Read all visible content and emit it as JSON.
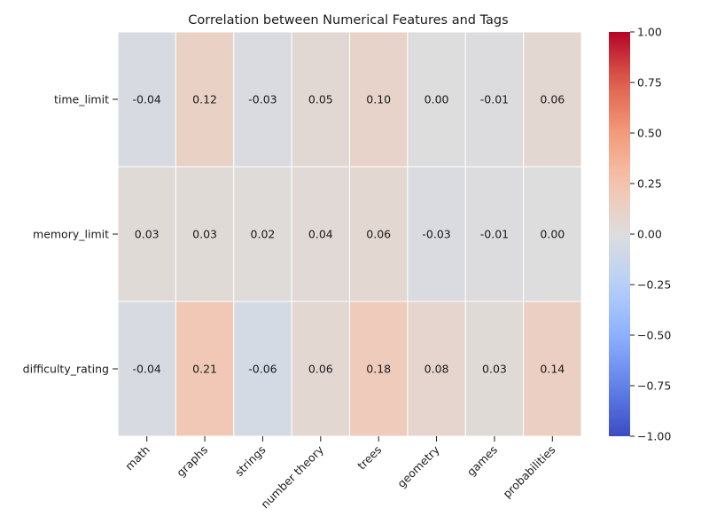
{
  "chart_data": {
    "type": "heatmap",
    "title": "Correlation between Numerical Features and Tags",
    "xlabel": "",
    "ylabel": "",
    "rows": [
      "time_limit",
      "memory_limit",
      "difficulty_rating"
    ],
    "columns": [
      "math",
      "graphs",
      "strings",
      "number theory",
      "trees",
      "geometry",
      "games",
      "probabilities"
    ],
    "values": [
      [
        -0.04,
        0.12,
        -0.03,
        0.05,
        0.1,
        0.0,
        -0.01,
        0.06
      ],
      [
        0.03,
        0.03,
        0.02,
        0.04,
        0.06,
        -0.03,
        -0.01,
        0.0
      ],
      [
        -0.04,
        0.21,
        -0.06,
        0.06,
        0.18,
        0.08,
        0.03,
        0.14
      ]
    ],
    "colormap": "coolwarm",
    "vmin": -1.0,
    "vmax": 1.0,
    "annotations": true,
    "annotation_format": "0.00",
    "colorbar": {
      "ticks": [
        1.0,
        0.75,
        0.5,
        0.25,
        0.0,
        -0.25,
        -0.5,
        -0.75,
        -1.0
      ],
      "tick_labels": [
        "1.00",
        "0.75",
        "0.50",
        "0.25",
        "0.00",
        "−0.25",
        "−0.50",
        "−0.75",
        "−1.00"
      ],
      "position": "right"
    },
    "grid_lines": "white"
  }
}
